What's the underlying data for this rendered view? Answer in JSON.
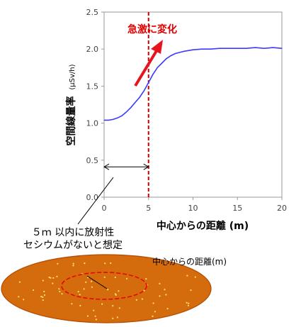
{
  "chart_data": {
    "type": "line",
    "xlabel": "中心からの距離 (m)",
    "ylabel": "空間線量率",
    "ylabel_unit": "(μSv/h)",
    "xlim": [
      0,
      20
    ],
    "ylim": [
      0,
      2.5
    ],
    "xticks": [
      0,
      5,
      10,
      15,
      20
    ],
    "yticks": [
      0.0,
      0.5,
      1.0,
      1.5,
      2.0,
      2.5
    ],
    "ytick_labels": [
      "0.0",
      "0.5",
      "1.0",
      "1.5",
      "2.0",
      "2.5"
    ],
    "grid": false,
    "series": [
      {
        "color": "#3b3bff",
        "x": [
          0,
          0.5,
          1,
          1.5,
          2,
          2.5,
          3,
          3.5,
          4,
          4.5,
          5,
          5.5,
          6,
          6.5,
          7,
          7.5,
          8,
          9,
          10,
          11,
          12,
          13,
          14,
          15,
          16,
          17,
          18,
          19,
          20
        ],
        "y": [
          1.04,
          1.04,
          1.05,
          1.07,
          1.1,
          1.15,
          1.21,
          1.28,
          1.35,
          1.44,
          1.55,
          1.66,
          1.75,
          1.81,
          1.87,
          1.91,
          1.94,
          1.97,
          1.99,
          2.0,
          2.0,
          2.01,
          2.01,
          2.01,
          2.01,
          2.02,
          2.01,
          2.02,
          2.01
        ]
      }
    ],
    "vline": {
      "x": 5,
      "color": "#d40000"
    },
    "annotations": {
      "sudden_change": "急激に変化",
      "range_marker": {
        "x_start": 0,
        "x_end": 5,
        "y": 0.41
      },
      "assumption_line1": "５ｍ 以内に放射性",
      "assumption_line2": "セシウムがないと想定",
      "distance_label": "中心からの距離(m)"
    },
    "colors": {
      "curve": "#3b3bff",
      "vline": "#d40000",
      "arrow": "#e8141d",
      "ground_fill": "#d46b0c",
      "ground_edge": "#b34a00",
      "ground_dots": "#ffe066",
      "inner_ring": "#e80000"
    }
  }
}
